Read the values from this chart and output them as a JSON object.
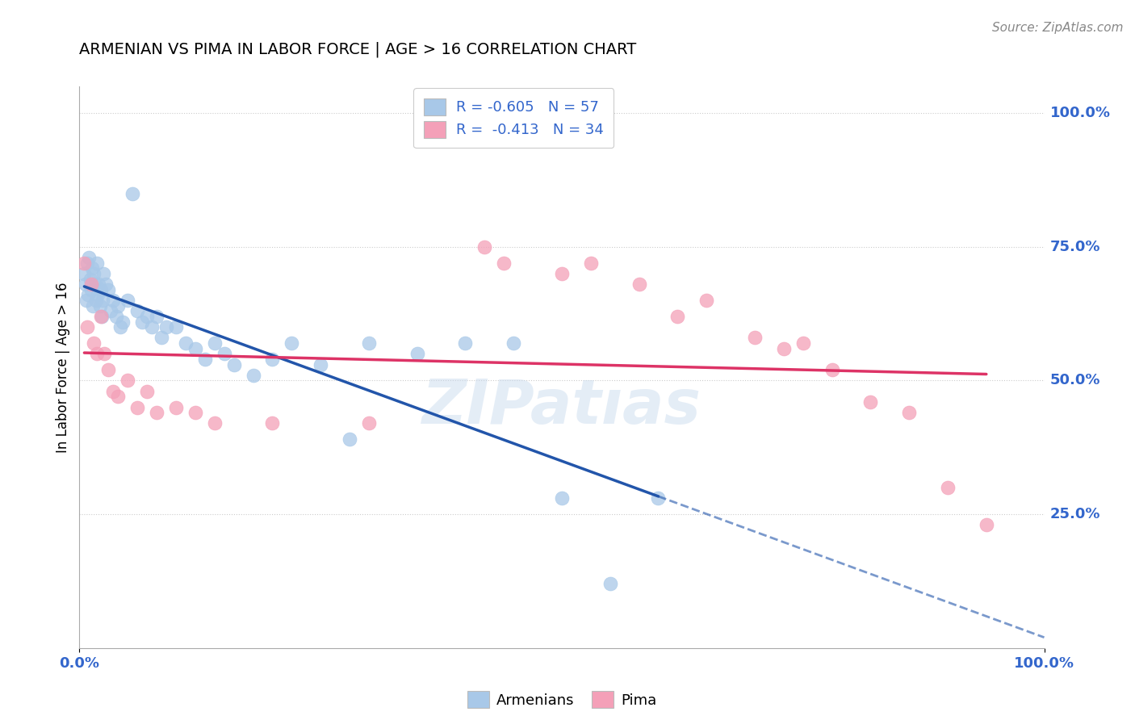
{
  "title": "ARMENIAN VS PIMA IN LABOR FORCE | AGE > 16 CORRELATION CHART",
  "source": "Source: ZipAtlas.com",
  "ylabel": "In Labor Force | Age > 16",
  "ytick_labels": [
    "25.0%",
    "50.0%",
    "75.0%",
    "100.0%"
  ],
  "ytick_values": [
    0.25,
    0.5,
    0.75,
    1.0
  ],
  "legend_armenians": "Armenians",
  "legend_pima": "Pima",
  "r_armenians": -0.605,
  "n_armenians": 57,
  "r_pima": -0.413,
  "n_pima": 34,
  "color_armenians": "#a8c8e8",
  "color_pima": "#f4a0b8",
  "color_line_armenians": "#2255aa",
  "color_line_pima": "#dd3366",
  "armenians_x": [
    0.005,
    0.006,
    0.007,
    0.008,
    0.009,
    0.01,
    0.011,
    0.012,
    0.013,
    0.014,
    0.015,
    0.016,
    0.017,
    0.018,
    0.019,
    0.02,
    0.021,
    0.022,
    0.023,
    0.024,
    0.025,
    0.027,
    0.03,
    0.032,
    0.035,
    0.038,
    0.04,
    0.042,
    0.045,
    0.05,
    0.055,
    0.06,
    0.065,
    0.07,
    0.075,
    0.08,
    0.085,
    0.09,
    0.1,
    0.11,
    0.12,
    0.13,
    0.14,
    0.15,
    0.16,
    0.18,
    0.2,
    0.22,
    0.25,
    0.28,
    0.3,
    0.35,
    0.4,
    0.45,
    0.5,
    0.55,
    0.6
  ],
  "armenians_y": [
    0.7,
    0.68,
    0.65,
    0.72,
    0.66,
    0.73,
    0.69,
    0.67,
    0.71,
    0.64,
    0.7,
    0.68,
    0.65,
    0.72,
    0.66,
    0.68,
    0.64,
    0.67,
    0.62,
    0.65,
    0.7,
    0.68,
    0.67,
    0.63,
    0.65,
    0.62,
    0.64,
    0.6,
    0.61,
    0.65,
    0.85,
    0.63,
    0.61,
    0.62,
    0.6,
    0.62,
    0.58,
    0.6,
    0.6,
    0.57,
    0.56,
    0.54,
    0.57,
    0.55,
    0.53,
    0.51,
    0.54,
    0.57,
    0.53,
    0.39,
    0.57,
    0.55,
    0.57,
    0.57,
    0.28,
    0.12,
    0.28
  ],
  "pima_x": [
    0.005,
    0.008,
    0.012,
    0.015,
    0.018,
    0.022,
    0.026,
    0.03,
    0.035,
    0.04,
    0.05,
    0.06,
    0.07,
    0.08,
    0.1,
    0.12,
    0.14,
    0.2,
    0.3,
    0.42,
    0.44,
    0.5,
    0.53,
    0.58,
    0.62,
    0.65,
    0.7,
    0.73,
    0.75,
    0.78,
    0.82,
    0.86,
    0.9,
    0.94
  ],
  "pima_y": [
    0.72,
    0.6,
    0.68,
    0.57,
    0.55,
    0.62,
    0.55,
    0.52,
    0.48,
    0.47,
    0.5,
    0.45,
    0.48,
    0.44,
    0.45,
    0.44,
    0.42,
    0.42,
    0.42,
    0.75,
    0.72,
    0.7,
    0.72,
    0.68,
    0.62,
    0.65,
    0.58,
    0.56,
    0.57,
    0.52,
    0.46,
    0.44,
    0.3,
    0.23
  ],
  "background_color": "#ffffff",
  "grid_color": "#cccccc",
  "watermark": "ZIPatıas"
}
